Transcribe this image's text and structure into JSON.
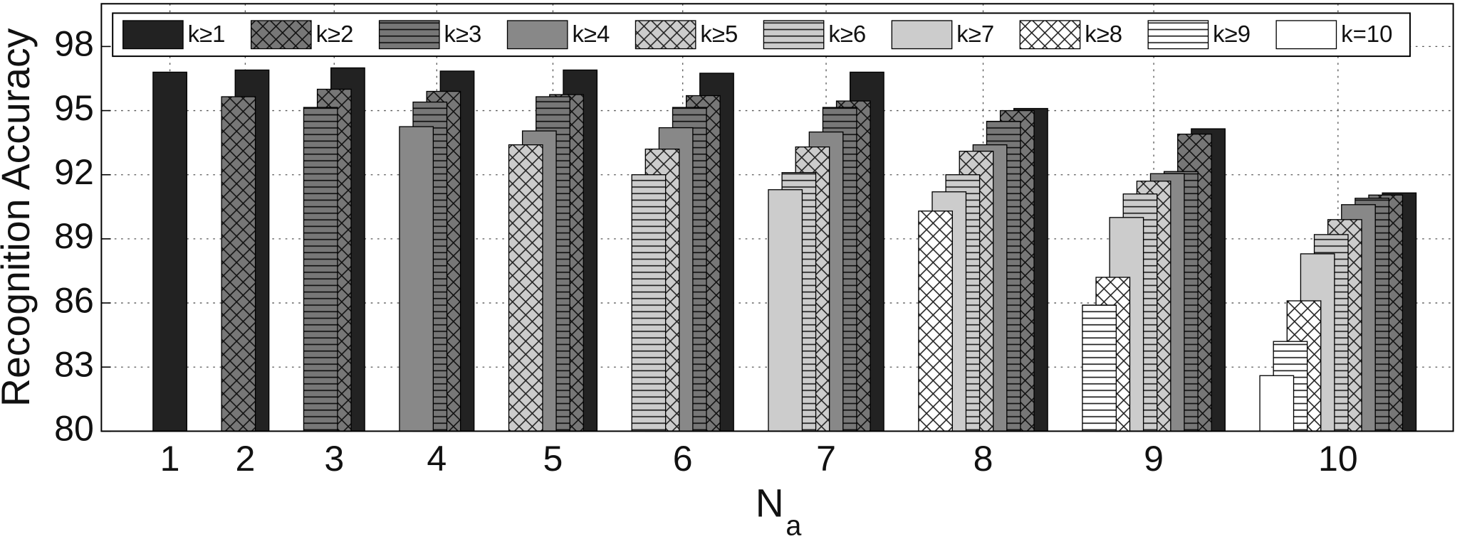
{
  "chart_data": {
    "type": "overlapped-bar",
    "y_label": "Recognition Accuracy",
    "x_label": "N",
    "x_label_subscript": "a",
    "categories": [
      "1",
      "2",
      "3",
      "4",
      "5",
      "6",
      "7",
      "8",
      "9",
      "10"
    ],
    "ylim": [
      80,
      100
    ],
    "yticks": [
      80,
      83,
      86,
      89,
      92,
      95,
      98
    ],
    "grid": true,
    "legend": "top",
    "series": [
      {
        "name": "k≥1",
        "color": "#222222",
        "hatch": "none",
        "values": [
          96.8,
          96.9,
          97.0,
          96.85,
          96.9,
          96.75,
          96.8,
          95.1,
          94.15,
          91.15
        ]
      },
      {
        "name": "k≥2",
        "color": "#777777",
        "hatch": "cross",
        "values": [
          null,
          95.65,
          96.0,
          95.9,
          95.75,
          95.7,
          95.45,
          95.0,
          93.9,
          91.05
        ]
      },
      {
        "name": "k≥3",
        "color": "#777777",
        "hatch": "horizontal",
        "values": [
          null,
          null,
          95.15,
          95.4,
          95.65,
          95.15,
          95.15,
          94.5,
          92.15,
          90.9
        ]
      },
      {
        "name": "k≥4",
        "color": "#888888",
        "hatch": "none",
        "values": [
          null,
          null,
          null,
          94.25,
          94.05,
          94.2,
          94.0,
          93.4,
          92.05,
          90.6
        ]
      },
      {
        "name": "k≥5",
        "color": "#cccccc",
        "hatch": "cross",
        "values": [
          null,
          null,
          null,
          null,
          93.4,
          93.2,
          93.3,
          93.1,
          91.7,
          89.9
        ]
      },
      {
        "name": "k≥6",
        "color": "#cccccc",
        "hatch": "horizontal",
        "values": [
          null,
          null,
          null,
          null,
          null,
          92.0,
          92.1,
          92.0,
          91.1,
          89.2
        ]
      },
      {
        "name": "k≥7",
        "color": "#cccccc",
        "hatch": "none",
        "values": [
          null,
          null,
          null,
          null,
          null,
          null,
          91.3,
          91.2,
          90.0,
          88.3
        ]
      },
      {
        "name": "k≥8",
        "color": "#ffffff",
        "hatch": "cross",
        "values": [
          null,
          null,
          null,
          null,
          null,
          null,
          null,
          90.3,
          87.2,
          86.1
        ]
      },
      {
        "name": "k≥9",
        "color": "#ffffff",
        "hatch": "horizontal",
        "values": [
          null,
          null,
          null,
          null,
          null,
          null,
          null,
          null,
          85.9,
          84.2
        ]
      },
      {
        "name": "k=10",
        "color": "#ffffff",
        "hatch": "none",
        "values": [
          null,
          null,
          null,
          null,
          null,
          null,
          null,
          null,
          null,
          82.6
        ]
      }
    ]
  }
}
